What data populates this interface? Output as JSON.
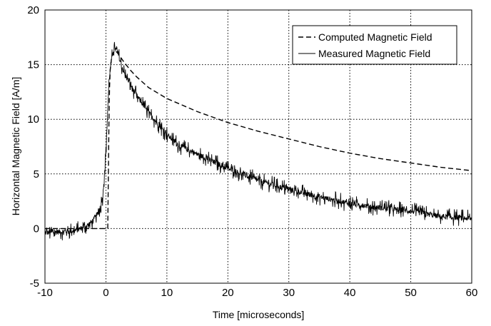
{
  "chart_data": {
    "type": "line",
    "title": "",
    "xlabel": "Time [microseconds]",
    "ylabel": "Horizontal Magnetic Field [A/m]",
    "xlim": [
      -10,
      60
    ],
    "ylim": [
      -5,
      20
    ],
    "x_ticks": [
      "-10",
      "0",
      "10",
      "20",
      "30",
      "40",
      "50",
      "60"
    ],
    "y_ticks": [
      "-5",
      "0",
      "5",
      "10",
      "15",
      "20"
    ],
    "grid": true,
    "grid_style": "dotted",
    "legend_position": "top-right",
    "series": [
      {
        "name": "Computed Magnetic Field",
        "style": "dashed",
        "color": "#000000",
        "points": [
          [
            -10,
            0
          ],
          [
            0.3,
            0
          ],
          [
            0.4,
            5
          ],
          [
            0.5,
            10
          ],
          [
            0.6,
            13
          ],
          [
            0.7,
            14.5
          ],
          [
            0.9,
            15.5
          ],
          [
            1.2,
            16.1
          ],
          [
            1.5,
            16.3
          ],
          [
            2,
            16.0
          ],
          [
            3,
            15.2
          ],
          [
            4,
            14.5
          ],
          [
            5,
            13.9
          ],
          [
            7,
            12.9
          ],
          [
            10,
            11.9
          ],
          [
            15,
            10.7
          ],
          [
            20,
            9.7
          ],
          [
            25,
            8.9
          ],
          [
            30,
            8.2
          ],
          [
            35,
            7.5
          ],
          [
            40,
            6.9
          ],
          [
            45,
            6.4
          ],
          [
            50,
            6.0
          ],
          [
            55,
            5.6
          ],
          [
            60,
            5.3
          ]
        ]
      },
      {
        "name": "Measured Magnetic Field",
        "style": "solid-noisy",
        "color": "#000000",
        "points": [
          [
            -10,
            -0.4
          ],
          [
            -5,
            -0.2
          ],
          [
            -3,
            0.3
          ],
          [
            -2,
            0.8
          ],
          [
            -1,
            1.7
          ],
          [
            -0.5,
            3
          ],
          [
            0,
            7
          ],
          [
            0.3,
            11
          ],
          [
            0.5,
            13.5
          ],
          [
            0.8,
            15
          ],
          [
            1.2,
            16.3
          ],
          [
            1.5,
            16.5
          ],
          [
            2,
            16.0
          ],
          [
            2.5,
            15
          ],
          [
            3,
            14.2
          ],
          [
            4,
            13.2
          ],
          [
            5,
            12.2
          ],
          [
            7,
            10.6
          ],
          [
            10,
            8.6
          ],
          [
            12,
            7.6
          ],
          [
            15,
            6.8
          ],
          [
            20,
            5.5
          ],
          [
            25,
            4.4
          ],
          [
            30,
            3.6
          ],
          [
            35,
            2.9
          ],
          [
            40,
            2.3
          ],
          [
            45,
            1.9
          ],
          [
            50,
            1.6
          ],
          [
            55,
            1.1
          ],
          [
            60,
            0.9
          ]
        ],
        "noise_amplitude": 0.4
      }
    ]
  }
}
